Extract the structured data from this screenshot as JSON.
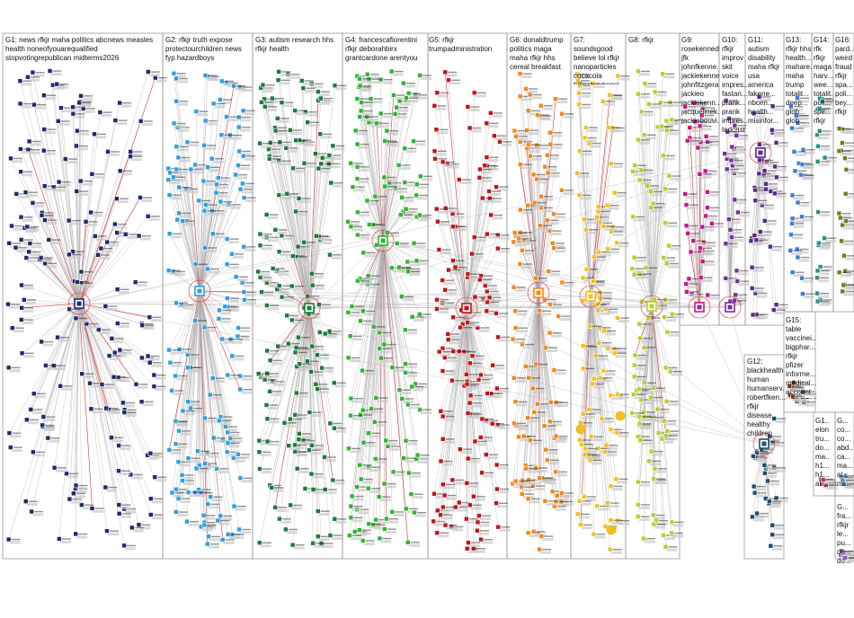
{
  "groups": [
    {
      "id": "G1",
      "label": "G1: news rfkjr maha politics abcnews measles health noneofyouarequalified stopvotingrepublican midterms2026",
      "color": "#1f2a6b"
    },
    {
      "id": "G2",
      "label": "G2: rfkjr truth expose protectourchildren news fyp hazardboys",
      "color": "#2f9fe0"
    },
    {
      "id": "G3",
      "label": "G3: autism research hhs rfkjr health",
      "color": "#1d7a3a"
    },
    {
      "id": "G4",
      "label": "G4: francescafiorentini rfkjr deborahbirx grantcardone arentyou",
      "color": "#2fb52f"
    },
    {
      "id": "G5",
      "label": "G5: rfkjr trumpadministration",
      "color": "#c0151b"
    },
    {
      "id": "G6",
      "label": "G6: donaldtrump politics maga maha rfkjr hhs cereal breakfast",
      "color": "#f08a1c"
    },
    {
      "id": "G7",
      "label": "G7: soundsgood believe lol rfkjr nanoparticles cocacola billgates pepsi trending viral",
      "color": "#f2c21b"
    },
    {
      "id": "G8",
      "label": "G8: rfkjr",
      "color": "#b5d12a"
    },
    {
      "id": "G9",
      "label": "G9: rosekennedy jfk johnfkenne... jackiekennedy johnfitzgera... jackieo jackiekenn... jacquelinek... jackiebouvi... jackieonass...",
      "color": "#c8158c"
    },
    {
      "id": "G10",
      "label": "G10: rfkjr improv skit voice impres... fastan... prank... prank impres... tedcruz",
      "color": "#7a2f9a"
    },
    {
      "id": "G11",
      "label": "G11: autism disability maha rfkjr usa america fakene... nbcen... health... misinfor... conspir... scientif...",
      "color": "#5a2a8a"
    },
    {
      "id": "G12",
      "label": "G12: blackhealth human humanserv... robertfken... rfkjr disease healthy children pregnantw... press",
      "color": "#1e4e6e"
    },
    {
      "id": "G13",
      "label": "G13: rfkjr hhs health... mahare... maha trump totalit... deep... glob... glob...",
      "color": "#3b7dd8"
    },
    {
      "id": "G14",
      "label": "G14: rfk rfkjr maga harv... wee... totalit... poli... spir... rfkjr",
      "color": "#2a8f8a"
    },
    {
      "id": "G15",
      "label": "G15: table vaccinei... bigphar... rfkjr pfizer informe... medical... account... HOLDTHE...",
      "color": "#7b3e12"
    },
    {
      "id": "G16",
      "label": "G16: pard... weird fraud rfkjr spa... poli... bey... rfkjr",
      "color": "#6e7e1e"
    },
    {
      "id": "G17",
      "label": "G1... elon tru... do... ma... h1... h1... al...",
      "color": "#a83a5a"
    },
    {
      "id": "G18",
      "label": "G... co... co... abd... ca... ma... al... nu...",
      "color": "#5a8aa8"
    },
    {
      "id": "G19",
      "label": "G... fra... rfkjr le... pu... do... do...",
      "color": "#8a5ab8"
    }
  ]
}
